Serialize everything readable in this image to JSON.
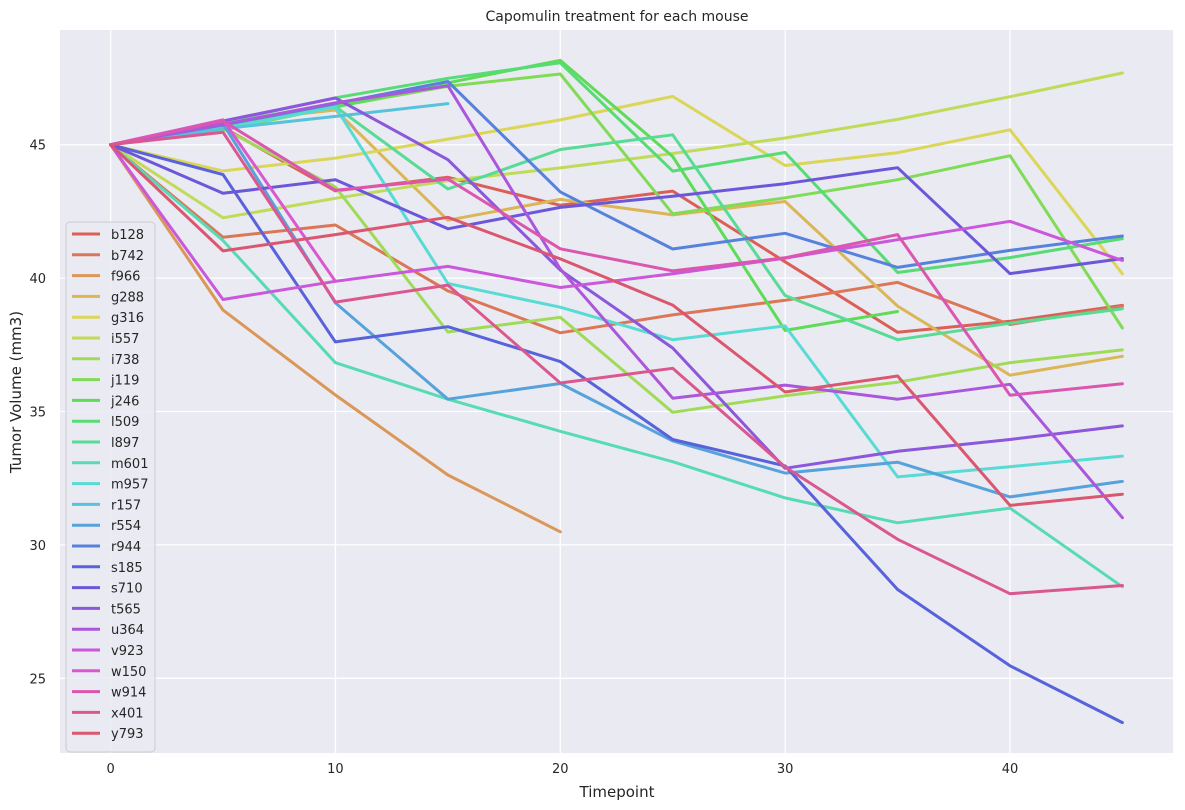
{
  "chart_data": {
    "type": "line",
    "title": "Capomulin treatment for each mouse",
    "xlabel": "Timepoint",
    "ylabel": "Tumor Volume (mm3)",
    "xlim": [
      -2.25,
      47.25
    ],
    "ylim": [
      22.2,
      49.3
    ],
    "xticks": [
      0,
      10,
      20,
      30,
      40
    ],
    "yticks": [
      25,
      30,
      35,
      40,
      45
    ],
    "grid": true,
    "legend_position": "center-left",
    "background": "#eaeaf2",
    "series": [
      {
        "name": "b128",
        "color": "#db5f57",
        "x": [
          0,
          5,
          10,
          15,
          20,
          25,
          30,
          35,
          40,
          45
        ],
        "y": [
          45.0,
          45.65,
          43.27,
          43.78,
          42.73,
          43.26,
          40.61,
          37.97,
          38.38,
          38.98
        ]
      },
      {
        "name": "b742",
        "color": "#db7757",
        "x": [
          0,
          5,
          10,
          15,
          20,
          25,
          30,
          35,
          40,
          45
        ],
        "y": [
          45.0,
          41.53,
          41.99,
          39.52,
          37.95,
          38.62,
          39.17,
          39.84,
          38.26,
          38.94
        ]
      },
      {
        "name": "f966",
        "color": "#db9757",
        "x": [
          0,
          5,
          10,
          15,
          20
        ],
        "y": [
          45.0,
          38.8,
          35.62,
          32.62,
          30.49
        ]
      },
      {
        "name": "g288",
        "color": "#dbb657",
        "x": [
          0,
          5,
          10,
          15,
          20,
          25,
          30,
          35,
          40,
          45
        ],
        "y": [
          45.0,
          45.84,
          46.3,
          42.17,
          42.95,
          42.37,
          42.87,
          38.95,
          36.36,
          37.07
        ]
      },
      {
        "name": "g316",
        "color": "#dbd657",
        "x": [
          0,
          5,
          10,
          15,
          20,
          25,
          30,
          35,
          40,
          45
        ],
        "y": [
          45.0,
          44.02,
          44.5,
          45.21,
          45.93,
          46.81,
          44.22,
          44.7,
          45.56,
          40.16
        ]
      },
      {
        "name": "i557",
        "color": "#c0db57",
        "x": [
          0,
          5,
          10,
          15,
          20,
          25,
          30,
          35,
          40,
          45
        ],
        "y": [
          45.0,
          42.26,
          42.99,
          43.65,
          44.13,
          44.67,
          45.25,
          45.95,
          46.8,
          47.69
        ]
      },
      {
        "name": "i738",
        "color": "#a0db57",
        "x": [
          0,
          5,
          10,
          15,
          20,
          25,
          30,
          35,
          40,
          45
        ],
        "y": [
          45.0,
          45.6,
          43.42,
          37.98,
          38.53,
          34.97,
          35.59,
          36.1,
          36.83,
          37.31
        ]
      },
      {
        "name": "j119",
        "color": "#80db57",
        "x": [
          0,
          5,
          10,
          15,
          20,
          25,
          30,
          35,
          40,
          45
        ],
        "y": [
          45.0,
          45.54,
          46.43,
          47.19,
          47.65,
          42.41,
          43.01,
          43.69,
          44.59,
          38.13
        ]
      },
      {
        "name": "j246",
        "color": "#5edb57",
        "x": [
          0,
          5,
          10,
          15,
          20,
          25,
          30,
          35
        ],
        "y": [
          45.0,
          45.64,
          46.41,
          47.32,
          48.16,
          44.56,
          38.04,
          38.75
        ]
      },
      {
        "name": "l509",
        "color": "#57db75",
        "x": [
          0,
          5,
          10,
          15,
          20,
          25,
          30,
          35,
          40,
          45
        ],
        "y": [
          45.0,
          45.85,
          46.76,
          47.49,
          48.07,
          44.01,
          44.71,
          40.21,
          40.77,
          41.48
        ]
      },
      {
        "name": "l897",
        "color": "#57db95",
        "x": [
          0,
          5,
          10,
          15,
          20,
          25,
          30,
          35,
          40,
          45
        ],
        "y": [
          45.0,
          45.8,
          46.43,
          43.34,
          44.82,
          45.37,
          39.35,
          37.69,
          38.31,
          38.85
        ]
      },
      {
        "name": "m601",
        "color": "#57dbb4",
        "x": [
          0,
          5,
          10,
          15,
          20,
          25,
          30,
          35,
          40,
          45
        ],
        "y": [
          45.0,
          41.41,
          36.83,
          35.46,
          34.26,
          33.12,
          31.76,
          30.83,
          31.38,
          28.43
        ]
      },
      {
        "name": "m957",
        "color": "#57dbd4",
        "x": [
          0,
          5,
          10,
          15,
          20,
          25,
          30,
          35,
          40,
          45
        ],
        "y": [
          45.0,
          45.62,
          46.41,
          39.8,
          38.91,
          37.69,
          38.21,
          32.55,
          32.93,
          33.33
        ]
      },
      {
        "name": "r157",
        "color": "#57c2db",
        "x": [
          0,
          5,
          10,
          15
        ],
        "y": [
          45.0,
          45.6,
          46.06,
          46.54
        ]
      },
      {
        "name": "r554",
        "color": "#57a2db",
        "x": [
          0,
          5,
          10,
          15,
          20,
          25,
          30,
          35,
          40,
          45
        ],
        "y": [
          45.0,
          45.78,
          39.07,
          35.46,
          36.05,
          33.9,
          32.69,
          33.1,
          31.8,
          32.38
        ]
      },
      {
        "name": "r944",
        "color": "#5782db",
        "x": [
          0,
          5,
          10,
          15,
          20,
          25,
          30,
          35,
          40,
          45
        ],
        "y": [
          45.0,
          45.74,
          46.54,
          47.37,
          43.23,
          41.09,
          41.68,
          40.4,
          41.04,
          41.58
        ]
      },
      {
        "name": "s185",
        "color": "#5762db",
        "x": [
          0,
          5,
          10,
          15,
          20,
          25,
          30,
          35,
          40,
          45
        ],
        "y": [
          45.0,
          43.88,
          37.61,
          38.18,
          36.87,
          33.95,
          32.96,
          28.33,
          25.47,
          23.34
        ]
      },
      {
        "name": "s710",
        "color": "#6c57db",
        "x": [
          0,
          5,
          10,
          15,
          20,
          25,
          30,
          35,
          40,
          45
        ],
        "y": [
          45.0,
          43.18,
          43.69,
          41.85,
          42.65,
          43.07,
          43.54,
          44.14,
          40.17,
          40.73
        ]
      },
      {
        "name": "t565",
        "color": "#8c57db",
        "x": [
          0,
          5,
          10,
          15,
          20,
          25,
          30,
          35,
          40,
          45
        ],
        "y": [
          45.0,
          45.89,
          46.75,
          44.44,
          40.3,
          37.38,
          32.87,
          33.51,
          33.95,
          34.46
        ]
      },
      {
        "name": "u364",
        "color": "#ab57db",
        "x": [
          0,
          5,
          10,
          15,
          20,
          25,
          30,
          35,
          40,
          45
        ],
        "y": [
          45.0,
          45.76,
          46.57,
          47.21,
          40.34,
          35.5,
          35.99,
          35.46,
          36.02,
          31.02
        ]
      },
      {
        "name": "v923",
        "color": "#cb57db",
        "x": [
          0,
          5,
          10,
          15,
          20,
          25,
          30,
          35,
          40,
          45
        ],
        "y": [
          45.0,
          39.2,
          39.88,
          40.44,
          39.65,
          40.16,
          40.75,
          41.44,
          42.13,
          40.66
        ]
      },
      {
        "name": "w150",
        "color": "#db57cf",
        "x": [
          0,
          5,
          10
        ],
        "y": [
          45.0,
          45.93,
          39.88
        ]
      },
      {
        "name": "w914",
        "color": "#db57af",
        "x": [
          0,
          5,
          10,
          15,
          20,
          25,
          30,
          35,
          40,
          45
        ],
        "y": [
          45.0,
          45.89,
          43.29,
          43.71,
          41.1,
          40.27,
          40.76,
          41.63,
          35.61,
          36.04
        ]
      },
      {
        "name": "x401",
        "color": "#db578f",
        "x": [
          0,
          5,
          10,
          15,
          20,
          25,
          30,
          35,
          40,
          45
        ],
        "y": [
          45.0,
          45.47,
          39.1,
          39.74,
          36.07,
          36.62,
          32.92,
          30.21,
          28.17,
          28.48
        ]
      },
      {
        "name": "y793",
        "color": "#db5770",
        "x": [
          0,
          5,
          10,
          15,
          20,
          25,
          30,
          35,
          40,
          45
        ],
        "y": [
          45.0,
          41.02,
          41.63,
          42.28,
          40.72,
          38.99,
          35.73,
          36.33,
          31.48,
          31.9
        ]
      }
    ]
  }
}
